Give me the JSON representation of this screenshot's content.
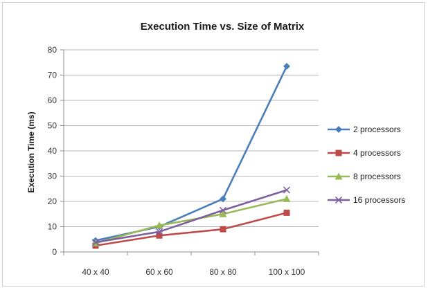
{
  "chart_data": {
    "type": "line",
    "title": "Execution Time vs. Size of Matrix",
    "xlabel": "",
    "ylabel": "Execution Time (ms)",
    "categories": [
      "40 x 40",
      "60 x 60",
      "80 x 80",
      "100 x 100"
    ],
    "ylim": [
      0,
      80
    ],
    "yticks": [
      0,
      10,
      20,
      30,
      40,
      50,
      60,
      70,
      80
    ],
    "grid": true,
    "legend": "right",
    "series": [
      {
        "name": "2 processors",
        "values": [
          4.5,
          10,
          21,
          73.5
        ],
        "color": "#4a7ebb",
        "marker": "diamond"
      },
      {
        "name": "4 processors",
        "values": [
          2.5,
          6.5,
          9,
          15.5
        ],
        "color": "#be4b48",
        "marker": "square"
      },
      {
        "name": "8 processors",
        "values": [
          3.5,
          10.5,
          15,
          21
        ],
        "color": "#98b954",
        "marker": "triangle"
      },
      {
        "name": "16 processors",
        "values": [
          3.8,
          8,
          16.5,
          24.5
        ],
        "color": "#7d60a0",
        "marker": "x"
      }
    ]
  }
}
